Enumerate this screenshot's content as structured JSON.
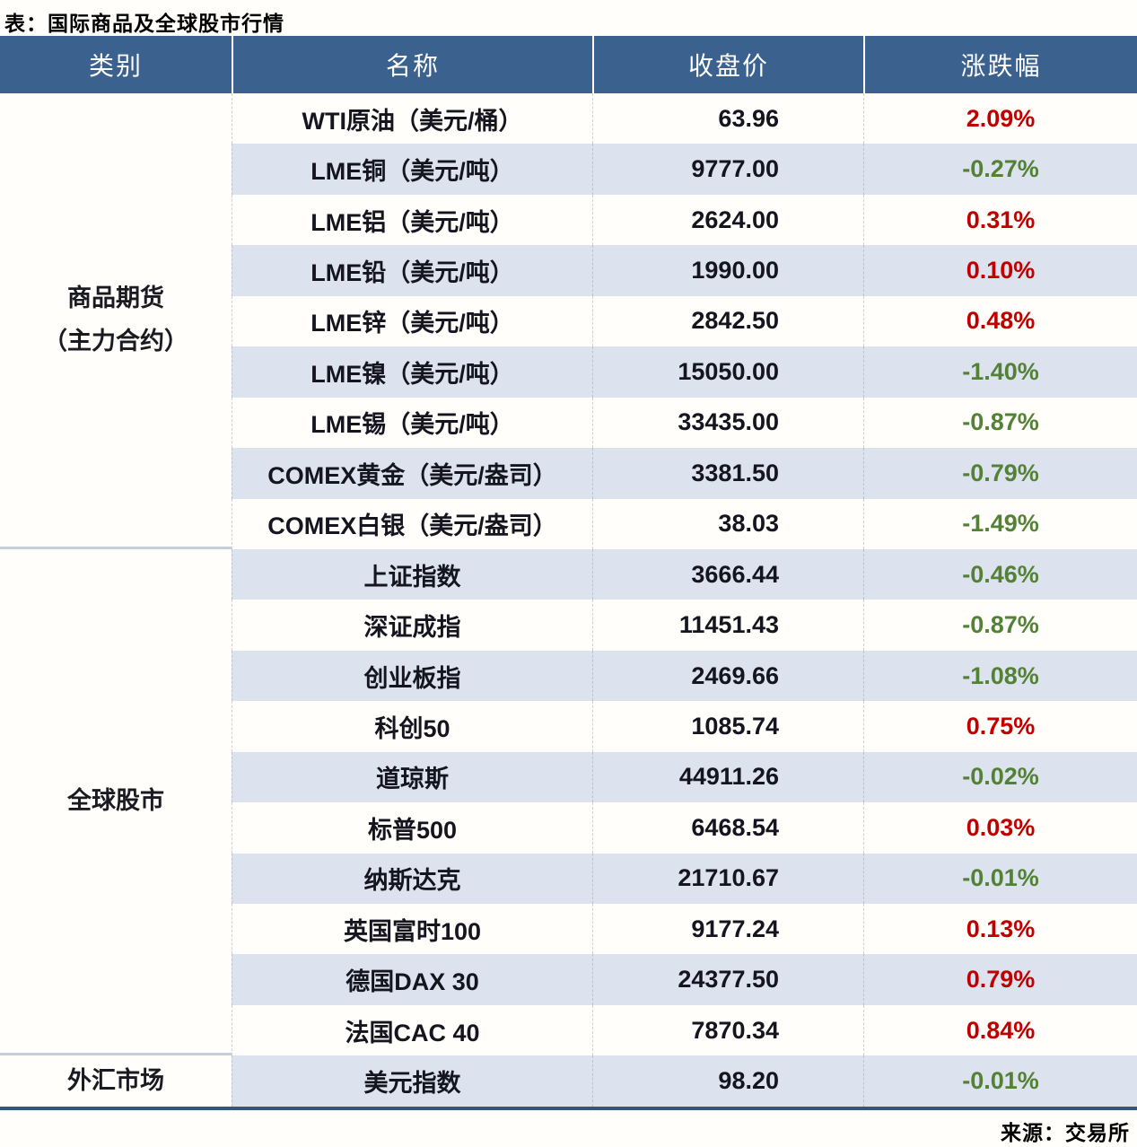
{
  "title": "表：国际商品及全球股市行情",
  "source": "来源：交易所",
  "colors": {
    "header_bg": "#3b618e",
    "stripe_bg": "#dce3ef",
    "rise": "#c00000",
    "fall": "#538135",
    "bottom_rule": "#30587e"
  },
  "chart_data": {
    "type": "table",
    "columns": [
      "类别",
      "名称",
      "收盘价",
      "涨跌幅"
    ],
    "groups": [
      {
        "category": "商品期货\n（主力合约）",
        "rows": [
          {
            "name": "WTI原油（美元/桶）",
            "close": "63.96",
            "change": "2.09%"
          },
          {
            "name": "LME铜（美元/吨）",
            "close": "9777.00",
            "change": "-0.27%"
          },
          {
            "name": "LME铝（美元/吨）",
            "close": "2624.00",
            "change": "0.31%"
          },
          {
            "name": "LME铅（美元/吨）",
            "close": "1990.00",
            "change": "0.10%"
          },
          {
            "name": "LME锌（美元/吨）",
            "close": "2842.50",
            "change": "0.48%"
          },
          {
            "name": "LME镍（美元/吨）",
            "close": "15050.00",
            "change": "-1.40%"
          },
          {
            "name": "LME锡（美元/吨）",
            "close": "33435.00",
            "change": "-0.87%"
          },
          {
            "name": "COMEX黄金（美元/盎司）",
            "close": "3381.50",
            "change": "-0.79%"
          },
          {
            "name": "COMEX白银（美元/盎司）",
            "close": "38.03",
            "change": "-1.49%"
          }
        ]
      },
      {
        "category": "全球股市",
        "rows": [
          {
            "name": "上证指数",
            "close": "3666.44",
            "change": "-0.46%"
          },
          {
            "name": "深证成指",
            "close": "11451.43",
            "change": "-0.87%"
          },
          {
            "name": "创业板指",
            "close": "2469.66",
            "change": "-1.08%"
          },
          {
            "name": "科创50",
            "close": "1085.74",
            "change": "0.75%"
          },
          {
            "name": "道琼斯",
            "close": "44911.26",
            "change": "-0.02%"
          },
          {
            "name": "标普500",
            "close": "6468.54",
            "change": "0.03%"
          },
          {
            "name": "纳斯达克",
            "close": "21710.67",
            "change": "-0.01%"
          },
          {
            "name": "英国富时100",
            "close": "9177.24",
            "change": "0.13%"
          },
          {
            "name": "德国DAX 30",
            "close": "24377.50",
            "change": "0.79%"
          },
          {
            "name": "法国CAC 40",
            "close": "7870.34",
            "change": "0.84%"
          }
        ]
      },
      {
        "category": "外汇市场",
        "rows": [
          {
            "name": "美元指数",
            "close": "98.20",
            "change": "-0.01%"
          }
        ]
      }
    ]
  }
}
